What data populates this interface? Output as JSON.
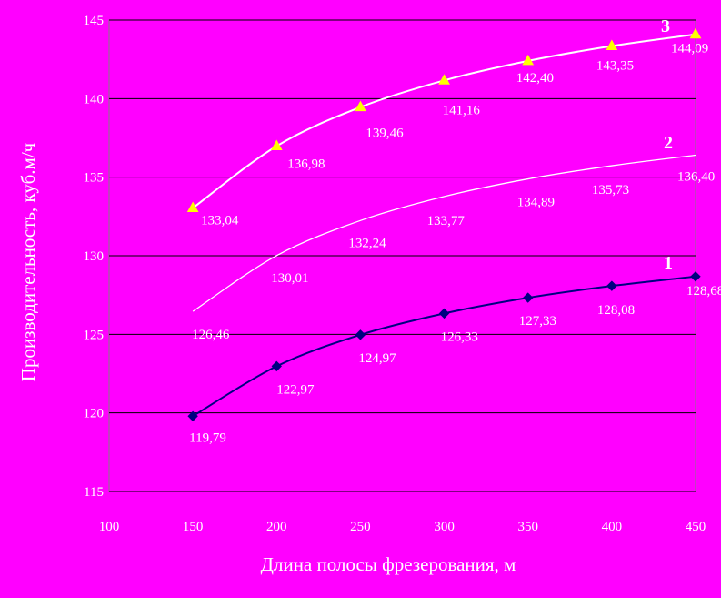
{
  "chart_data": {
    "type": "line",
    "xlabel": "Длина полосы фрезерования, м",
    "ylabel": "Производительность, куб.м/ч",
    "xlim": [
      100,
      450
    ],
    "ylim": [
      115,
      145
    ],
    "x_ticks": [
      "100",
      "150",
      "200",
      "250",
      "300",
      "350",
      "400",
      "450"
    ],
    "y_ticks": [
      "115",
      "120",
      "125",
      "130",
      "135",
      "140",
      "145"
    ],
    "grid": "horizontal",
    "x": [
      150,
      200,
      250,
      300,
      350,
      400,
      450
    ],
    "series": [
      {
        "name": "1",
        "values": [
          119.79,
          122.97,
          124.97,
          126.33,
          127.33,
          128.08,
          128.68
        ],
        "labels": [
          "119,79",
          "122,97",
          "124,97",
          "126,33",
          "127,33",
          "128,08",
          "128,68"
        ],
        "color": "#000080",
        "marker": "diamond"
      },
      {
        "name": "2",
        "values": [
          126.46,
          130.01,
          132.24,
          133.77,
          134.89,
          135.73,
          136.4
        ],
        "labels": [
          "126,46",
          "130,01",
          "132,24",
          "133,77",
          "134,89",
          "135,73",
          "136,40"
        ],
        "color": "#FFFFFF",
        "marker": "none"
      },
      {
        "name": "3",
        "values": [
          133.04,
          136.98,
          139.46,
          141.16,
          142.4,
          143.35,
          144.09
        ],
        "labels": [
          "133,04",
          "136,98",
          "139,46",
          "141,16",
          "142,40",
          "143,35",
          "144,09"
        ],
        "color": "#FFFF00",
        "line_color": "#FFFFFF",
        "marker": "triangle"
      }
    ]
  }
}
